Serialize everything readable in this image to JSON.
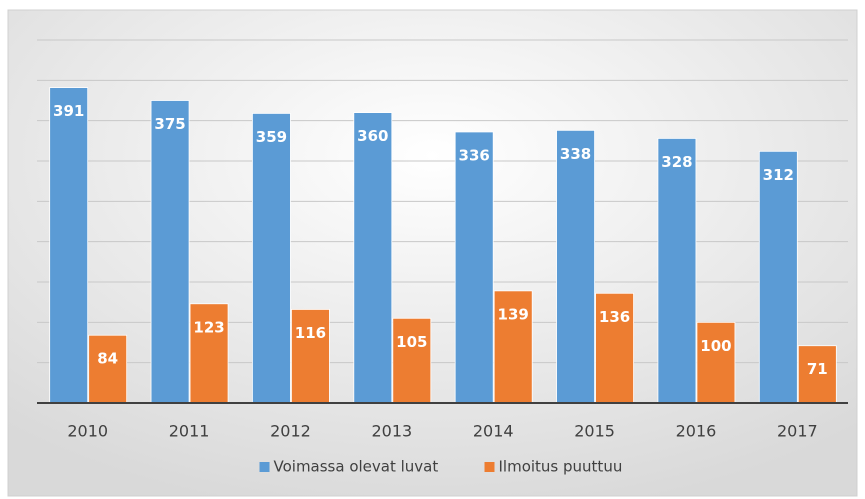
{
  "chart_data": {
    "type": "bar",
    "categories": [
      "2010",
      "2011",
      "2012",
      "2013",
      "2014",
      "2015",
      "2016",
      "2017"
    ],
    "series": [
      {
        "name": "Voimassa olevat luvat",
        "color": "#5b9bd5",
        "values": [
          391,
          375,
          359,
          360,
          336,
          338,
          328,
          312
        ]
      },
      {
        "name": "Ilmoitus puuttuu",
        "color": "#ed7d31",
        "values": [
          84,
          123,
          116,
          105,
          139,
          136,
          100,
          71
        ]
      }
    ],
    "ylim": [
      0,
      450
    ],
    "yticks": [
      0,
      50,
      100,
      150,
      200,
      250,
      300,
      350,
      400,
      450
    ],
    "grid": true,
    "legend": "bottom"
  }
}
